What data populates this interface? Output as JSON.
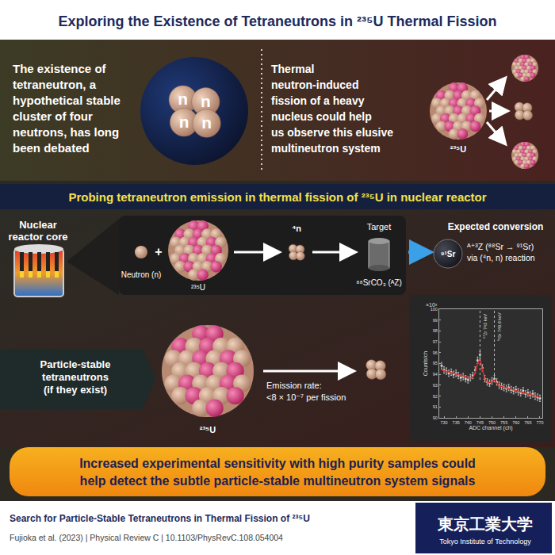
{
  "header": {
    "title": "Exploring the Existence of Tetraneutrons in ²³⁵U Thermal Fission"
  },
  "intro": {
    "left_text": [
      "The existence of",
      "tetraneutron, a",
      "hypothetical stable",
      "cluster of four",
      "neutrons, has long",
      "been debated"
    ],
    "right_text": [
      "Thermal",
      "neutron-induced",
      "fission of a heavy",
      "nucleus could help",
      "us observe this elusive",
      "multineutron system"
    ],
    "neutron_symbol": "n",
    "nucleus_label": "²³⁵U"
  },
  "banner": "Probing tetraneutron emission in thermal fission of ²³⁵U in nuclear reactor",
  "process": {
    "reactor_label": [
      "Nuclear",
      "reactor core"
    ],
    "neutron_label": "Neutron (n)",
    "plus": "+",
    "nucleus_label": "²³⁵U",
    "tetraneutron_label": "⁴n",
    "target_title": "Target",
    "target_label": "⁸⁸SrCO₃ (ᴬZ)",
    "conversion_title": "Expected conversion",
    "product_label": "⁹¹Sr",
    "conversion_text": [
      "ᴬ⁺³Z (⁸⁸Sr → ⁹¹Sr)",
      "via (⁴n, n) reaction"
    ]
  },
  "result": {
    "label": [
      "Particle-stable",
      "tetraneutrons",
      "(if they exist)"
    ],
    "nucleus_label": "²³⁵U",
    "emission_text": [
      "Emission rate:",
      "<8 × 10⁻⁷ per fission"
    ]
  },
  "chart_data": {
    "type": "scatter",
    "x_label": "ADC channel (ch)",
    "y_label": "Counts/ch",
    "y_multiplier": "×10³",
    "x": [
      729,
      730,
      731,
      732,
      733,
      734,
      735,
      736,
      737,
      738,
      739,
      740,
      741,
      742,
      743,
      744,
      745,
      746,
      747,
      748,
      749,
      750,
      751,
      752,
      753,
      754,
      755,
      756,
      757,
      758,
      759,
      760,
      761,
      762,
      763,
      764,
      765,
      766,
      767,
      768,
      769,
      770
    ],
    "series": [
      {
        "type": "scatter",
        "color": "#d0d0d0",
        "marker": "circle",
        "values": [
          94.8,
          94.4,
          94.3,
          94.1,
          94.2,
          94.0,
          94.1,
          93.9,
          93.7,
          93.8,
          93.6,
          93.5,
          93.7,
          93.9,
          94.4,
          95.3,
          95.8,
          94.6,
          93.6,
          93.3,
          93.2,
          93.4,
          93.6,
          93.3,
          93.0,
          92.9,
          92.8,
          92.7,
          92.8,
          92.6,
          92.5,
          92.6,
          92.4,
          92.3,
          92.5,
          92.2,
          92.3,
          92.1,
          92.2,
          92.0,
          91.9,
          91.8
        ],
        "errors": [
          0.3,
          0.3,
          0.3,
          0.3,
          0.3,
          0.3,
          0.3,
          0.3,
          0.3,
          0.3,
          0.3,
          0.3,
          0.3,
          0.3,
          0.3,
          0.3,
          0.3,
          0.3,
          0.3,
          0.3,
          0.3,
          0.3,
          0.3,
          0.3,
          0.3,
          0.3,
          0.3,
          0.3,
          0.3,
          0.3,
          0.3,
          0.3,
          0.3,
          0.3,
          0.3,
          0.3,
          0.3,
          0.3,
          0.3,
          0.3,
          0.3,
          0.3
        ]
      },
      {
        "type": "line",
        "color": "#e0302a",
        "line_style": "solid",
        "values": [
          94.4,
          94.34,
          94.28,
          94.22,
          94.16,
          94.1,
          94.03,
          93.97,
          93.91,
          93.85,
          93.79,
          93.73,
          93.67,
          93.71,
          94.15,
          94.99,
          95.42,
          94.46,
          93.6,
          93.29,
          93.23,
          93.37,
          93.46,
          93.2,
          92.94,
          92.88,
          92.81,
          92.75,
          92.69,
          92.63,
          92.57,
          92.51,
          92.45,
          92.39,
          92.33,
          92.27,
          92.2,
          92.14,
          92.08,
          92.02,
          91.96,
          91.9
        ]
      }
    ],
    "peaks": [
      {
        "x": 745,
        "label": "⁹⁷Zr 743 keV"
      },
      {
        "x": 751,
        "label": "⁹¹Sr 749.8 keV"
      }
    ],
    "xlim": [
      728,
      771
    ],
    "xticks": [
      730,
      735,
      740,
      745,
      750,
      755,
      760,
      765,
      770
    ],
    "ylim": [
      90,
      100
    ],
    "yticks": [
      90,
      91,
      92,
      93,
      94,
      95,
      96,
      97,
      98,
      99,
      100
    ],
    "grid": false
  },
  "conclusion": [
    "Increased experimental sensitivity with high purity samples could",
    "help detect the subtle particle-stable multineutron system signals"
  ],
  "footer": {
    "title": "Search for Particle-Stable Tetraneutrons in Thermal Fission of ²³⁵U",
    "citation": "Fujioka et al. (2023) | Physical Review C | 10.1103/PhysRevC.108.054004",
    "institution": "東京工業大学",
    "institution_en": "Tokyo Institute of Technology"
  }
}
